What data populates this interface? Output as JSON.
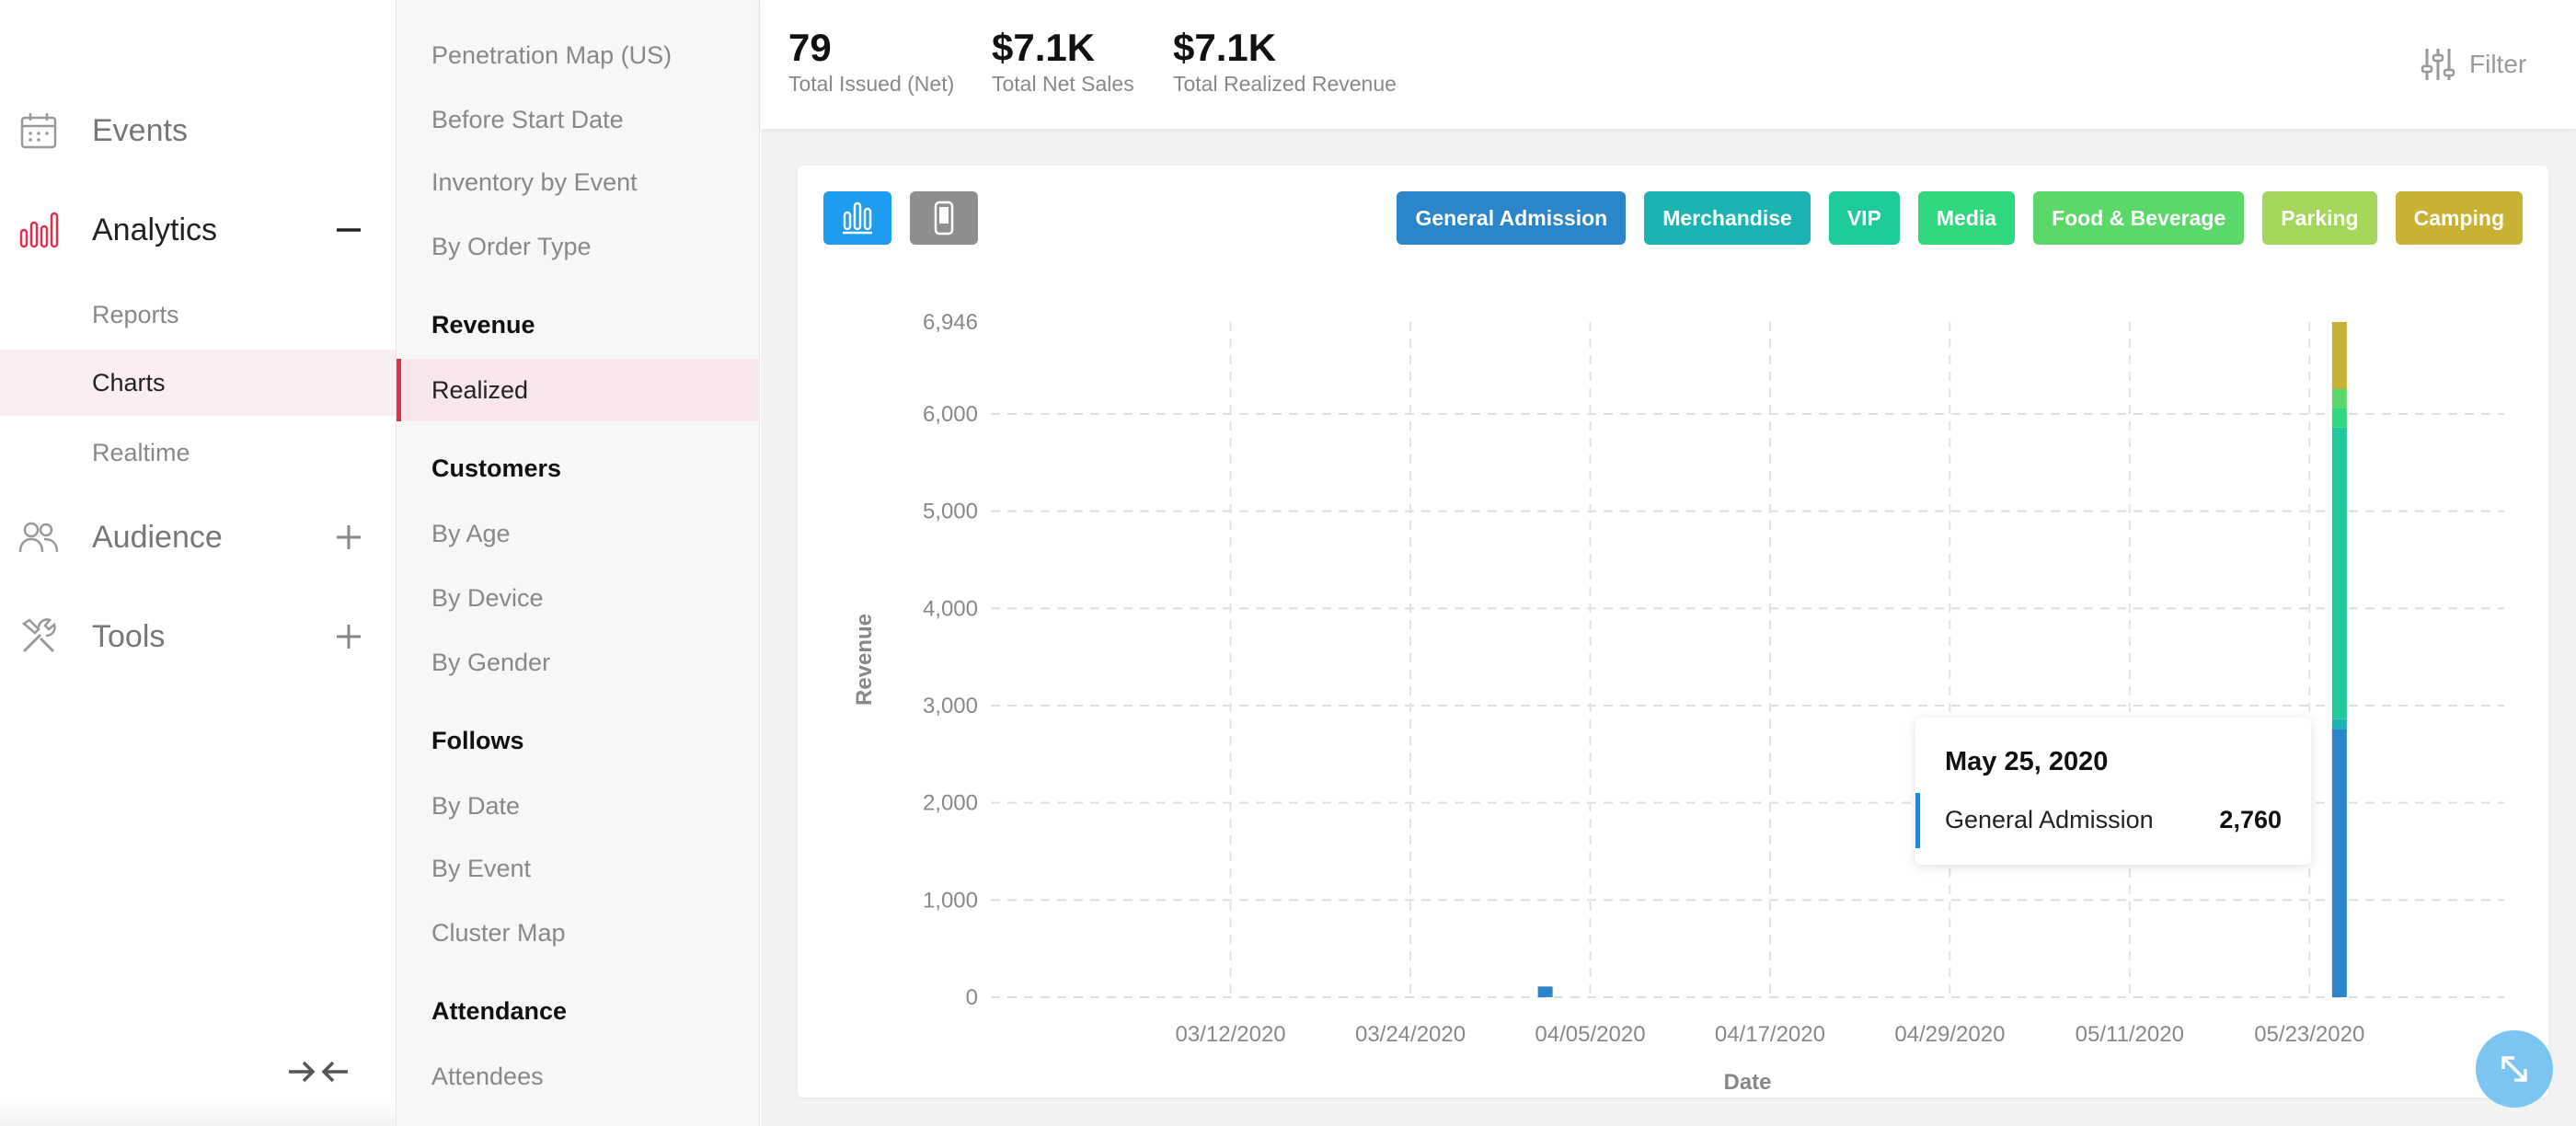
{
  "nav": {
    "items": [
      {
        "label": "Events",
        "icon": "calendar-icon"
      },
      {
        "label": "Analytics",
        "icon": "bar-chart-icon",
        "toggle": "minus"
      },
      {
        "label": "Audience",
        "icon": "users-icon",
        "toggle": "plus"
      },
      {
        "label": "Tools",
        "icon": "tools-icon",
        "toggle": "plus"
      }
    ],
    "analytics_sub": [
      {
        "label": "Reports"
      },
      {
        "label": "Charts",
        "active": true
      },
      {
        "label": "Realtime"
      }
    ],
    "accent_color": "#e0304e"
  },
  "submenu": {
    "top_items": [
      "Penetration Map (US)",
      "Before Start Date",
      "Inventory by Event",
      "By Order Type"
    ],
    "sections": [
      {
        "heading": "Revenue",
        "items": [
          "Realized"
        ]
      },
      {
        "heading": "Customers",
        "items": [
          "By Age",
          "By Device",
          "By Gender"
        ]
      },
      {
        "heading": "Follows",
        "items": [
          "By Date",
          "By Event",
          "Cluster Map"
        ]
      },
      {
        "heading": "Attendance",
        "items": [
          "Attendees"
        ]
      }
    ],
    "active_item": "Realized"
  },
  "stats": [
    {
      "value": "79",
      "caption": "Total Issued (Net)"
    },
    {
      "value": "$7.1K",
      "caption": "Total Net Sales"
    },
    {
      "value": "$7.1K",
      "caption": "Total Realized Revenue"
    }
  ],
  "filter": {
    "label": "Filter",
    "icon": "sliders-icon"
  },
  "view_buttons": [
    {
      "name": "bar-chart-view",
      "icon": "bar-chart-icon",
      "color": "#1e9cf0",
      "active": true
    },
    {
      "name": "mobile-view",
      "icon": "phone-icon",
      "color": "#8e8e8e",
      "active": false
    }
  ],
  "legend": [
    {
      "label": "General Admission",
      "color": "#2a86c9"
    },
    {
      "label": "Merchandise",
      "color": "#1cb3b3"
    },
    {
      "label": "VIP",
      "color": "#1ec99a"
    },
    {
      "label": "Media",
      "color": "#2fd87c"
    },
    {
      "label": "Food & Beverage",
      "color": "#5bd86a"
    },
    {
      "label": "Parking",
      "color": "#a3d65a"
    },
    {
      "label": "Camping",
      "color": "#c8b134"
    }
  ],
  "chart_data": {
    "type": "bar",
    "stacked": true,
    "xlabel": "Date",
    "ylabel": "Revenue",
    "ylim": [
      0,
      6946
    ],
    "yticks": [
      0,
      1000,
      2000,
      3000,
      4000,
      5000,
      6000,
      6946
    ],
    "ytick_labels": [
      "0",
      "1,000",
      "2,000",
      "3,000",
      "4,000",
      "5,000",
      "6,000",
      "6,946"
    ],
    "xlim": [
      "2020-02-25",
      "2020-06-05"
    ],
    "xticks": [
      "2020-03-12",
      "2020-03-24",
      "2020-04-05",
      "2020-04-17",
      "2020-04-29",
      "2020-05-11",
      "2020-05-23"
    ],
    "xtick_labels": [
      "03/12/2020",
      "03/24/2020",
      "04/05/2020",
      "04/17/2020",
      "04/29/2020",
      "05/11/2020",
      "05/23/2020"
    ],
    "grid": true,
    "bars": [
      {
        "date": "2020-04-02",
        "segments": [
          {
            "series": "General Admission",
            "value": 110
          }
        ]
      },
      {
        "date": "2020-05-25",
        "segments": [
          {
            "series": "General Admission",
            "value": 2760
          },
          {
            "series": "Merchandise",
            "value": 100
          },
          {
            "series": "VIP",
            "value": 3000
          },
          {
            "series": "Media",
            "value": 200
          },
          {
            "series": "Food & Beverage",
            "value": 200
          },
          {
            "series": "Parking",
            "value": 0
          },
          {
            "series": "Camping",
            "value": 686
          }
        ]
      }
    ]
  },
  "tooltip": {
    "date": "May 25, 2020",
    "series": "General Admission",
    "value": "2,760",
    "color": "#2a86c9"
  }
}
